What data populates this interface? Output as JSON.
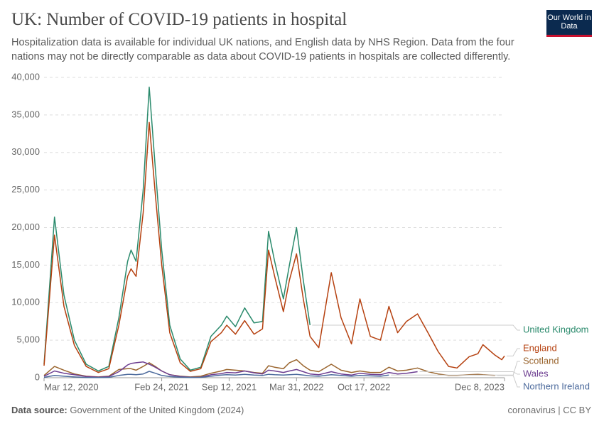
{
  "logo": "Our World in Data",
  "chart_data": {
    "type": "line",
    "title": "UK: Number of COVID-19 patients in hospital",
    "subtitle": "Hospitalization data is available for individual UK nations, and English data by NHS Region. Data from the four nations may not be directly comparable as data about COVID-19 patients in hospitals are collected differently.",
    "source_label": "Data source:",
    "source": "Government of the United Kingdom (2024)",
    "footer": "coronavirus | CC BY",
    "grid": true,
    "xlim": [
      "2020-03-12",
      "2023-12-08"
    ],
    "xticks": [
      {
        "value": "2020-03-12",
        "label": "Mar 12, 2020"
      },
      {
        "value": "2021-02-24",
        "label": "Feb 24, 2021"
      },
      {
        "value": "2021-09-12",
        "label": "Sep 12, 2021"
      },
      {
        "value": "2022-03-31",
        "label": "Mar 31, 2022"
      },
      {
        "value": "2022-10-17",
        "label": "Oct 17, 2022"
      },
      {
        "value": "2023-12-08",
        "label": "Dec 8, 2023"
      }
    ],
    "ylim": [
      0,
      40000
    ],
    "yticks": [
      0,
      {
        "value": 5000,
        "label": "5,000"
      },
      {
        "value": 10000,
        "label": "10,000"
      },
      {
        "value": 15000,
        "label": "15,000"
      },
      {
        "value": 20000,
        "label": "20,000"
      },
      {
        "value": 25000,
        "label": "25,000"
      },
      {
        "value": 30000,
        "label": "30,000"
      },
      {
        "value": 35000,
        "label": "35,000"
      },
      {
        "value": 40000,
        "label": "40,000"
      }
    ],
    "x": [
      "2020-03-12",
      "2020-04-12",
      "2020-05-10",
      "2020-06-10",
      "2020-07-15",
      "2020-08-20",
      "2020-09-20",
      "2020-10-20",
      "2020-11-15",
      "2020-11-25",
      "2020-12-10",
      "2020-12-31",
      "2021-01-18",
      "2021-02-05",
      "2021-02-24",
      "2021-03-20",
      "2021-04-20",
      "2021-05-20",
      "2021-06-20",
      "2021-07-20",
      "2021-08-20",
      "2021-09-05",
      "2021-10-01",
      "2021-10-28",
      "2021-11-25",
      "2021-12-20",
      "2022-01-07",
      "2022-01-25",
      "2022-02-20",
      "2022-03-10",
      "2022-03-31",
      "2022-04-20",
      "2022-05-10",
      "2022-06-05",
      "2022-07-12",
      "2022-08-10",
      "2022-09-10",
      "2022-10-05",
      "2022-11-05",
      "2022-12-05",
      "2022-12-30",
      "2023-01-25",
      "2023-02-20",
      "2023-03-25",
      "2023-04-25",
      "2023-05-25",
      "2023-06-25",
      "2023-07-20",
      "2023-08-25",
      "2023-09-20",
      "2023-10-05",
      "2023-11-10",
      "2023-11-30",
      "2023-12-08"
    ],
    "series": [
      {
        "name": "United Kingdom",
        "color": "#2a8a6c",
        "values": [
          1800,
          21400,
          11000,
          5000,
          1800,
          900,
          1500,
          8000,
          15500,
          17000,
          15500,
          25000,
          38700,
          28000,
          17000,
          7000,
          2500,
          1000,
          1400,
          5500,
          7000,
          8200,
          6800,
          9300,
          7300,
          7500,
          19500,
          15500,
          10500,
          15000,
          20000,
          13000,
          7000,
          null,
          null,
          null,
          null,
          null,
          null,
          null,
          null,
          null,
          null,
          null,
          null,
          null,
          null,
          null,
          null,
          null,
          null,
          null,
          null,
          null
        ]
      },
      {
        "name": "England",
        "color": "#b5400f",
        "values": [
          1600,
          19000,
          9500,
          4300,
          1500,
          700,
          1200,
          7000,
          13500,
          14500,
          13500,
          22000,
          34000,
          24500,
          15000,
          6000,
          2000,
          850,
          1200,
          4800,
          6000,
          7000,
          5800,
          7600,
          5800,
          6500,
          17000,
          13500,
          8800,
          13000,
          16500,
          10500,
          5500,
          4000,
          14000,
          8000,
          4500,
          10500,
          5500,
          5000,
          9500,
          6000,
          7500,
          8500,
          6000,
          3500,
          1500,
          1300,
          2800,
          3200,
          4400,
          3000,
          2400,
          2900
        ]
      },
      {
        "name": "Scotland",
        "color": "#9a652e",
        "values": [
          300,
          1500,
          1000,
          500,
          200,
          100,
          200,
          1100,
          1200,
          1200,
          1000,
          1500,
          2000,
          1500,
          900,
          400,
          200,
          100,
          200,
          600,
          900,
          1100,
          1000,
          900,
          700,
          600,
          1600,
          1400,
          1200,
          2000,
          2400,
          1600,
          1000,
          800,
          1800,
          1000,
          700,
          900,
          700,
          700,
          1400,
          900,
          1000,
          1300,
          800,
          500,
          300,
          300,
          400,
          450,
          400,
          300,
          null,
          null
        ]
      },
      {
        "name": "Wales",
        "color": "#6d3e91",
        "values": [
          200,
          900,
          600,
          400,
          150,
          80,
          150,
          800,
          1700,
          1900,
          2000,
          2100,
          1800,
          1400,
          900,
          400,
          150,
          60,
          80,
          400,
          550,
          700,
          650,
          900,
          650,
          500,
          1000,
          900,
          700,
          900,
          1100,
          800,
          500,
          400,
          800,
          500,
          350,
          600,
          450,
          400,
          700,
          500,
          600,
          800,
          null,
          null,
          null,
          null,
          null,
          null,
          null,
          null,
          null,
          null
        ]
      },
      {
        "name": "Northern Ireland",
        "color": "#4c6a9c",
        "values": [
          50,
          300,
          200,
          100,
          30,
          20,
          50,
          300,
          450,
          450,
          400,
          500,
          850,
          600,
          300,
          150,
          80,
          40,
          50,
          200,
          350,
          400,
          350,
          450,
          350,
          300,
          450,
          400,
          350,
          400,
          450,
          350,
          250,
          200,
          400,
          300,
          200,
          300,
          250,
          200,
          350,
          null,
          null,
          null,
          null,
          null,
          null,
          null,
          null,
          null,
          null,
          null,
          null,
          null
        ]
      }
    ]
  }
}
